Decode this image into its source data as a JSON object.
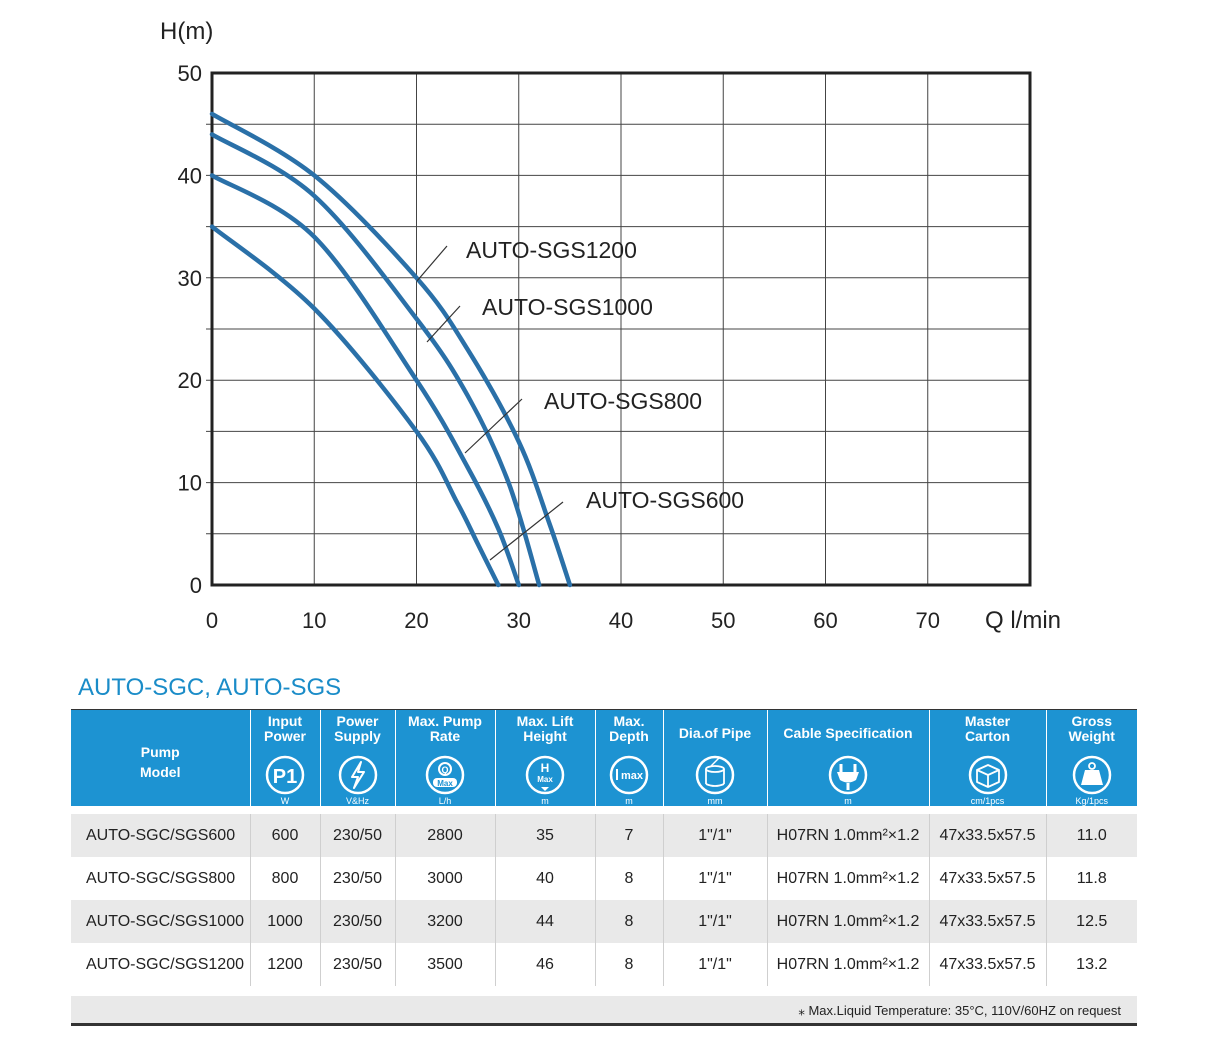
{
  "chart_data": {
    "type": "line",
    "ylabel": "H(m)",
    "xlabel": "Q l/min",
    "xlim": [
      0,
      80
    ],
    "ylim": [
      0,
      50
    ],
    "xticks": [
      "0",
      "10",
      "20",
      "30",
      "40",
      "50",
      "60",
      "70"
    ],
    "yticks": [
      "0",
      "10",
      "20",
      "30",
      "40",
      "50"
    ],
    "grid": true,
    "line_color": "#2a70a8",
    "series": [
      {
        "name": "AUTO-SGS1200",
        "x": [
          0,
          10,
          20,
          25,
          30,
          33,
          35
        ],
        "y": [
          46,
          40,
          30,
          23,
          14,
          6,
          0
        ]
      },
      {
        "name": "AUTO-SGS1000",
        "x": [
          0,
          10,
          20,
          25,
          29,
          32
        ],
        "y": [
          44,
          38,
          26,
          18.5,
          10,
          0
        ]
      },
      {
        "name": "AUTO-SGS800",
        "x": [
          0,
          10,
          20,
          25,
          28,
          30
        ],
        "y": [
          40,
          34,
          20,
          11.5,
          5.5,
          0
        ]
      },
      {
        "name": "AUTO-SGS600",
        "x": [
          0,
          10,
          20,
          24,
          26,
          28
        ],
        "y": [
          35,
          27,
          15,
          8,
          4,
          0
        ]
      }
    ],
    "annotations": [
      {
        "text": "AUTO-SGS1200",
        "series": "AUTO-SGS1200"
      },
      {
        "text": "AUTO-SGS1000",
        "series": "AUTO-SGS1000"
      },
      {
        "text": "AUTO-SGS800",
        "series": "AUTO-SGS800"
      },
      {
        "text": "AUTO-SGS600",
        "series": "AUTO-SGS600"
      }
    ]
  },
  "section_title": "AUTO-SGC, AUTO-SGS",
  "table": {
    "header_color": "#1d93d2",
    "columns": [
      {
        "label": "Pump Model",
        "unit": "",
        "icon": ""
      },
      {
        "label": "Input Power",
        "unit": "W",
        "icon": "p1-icon"
      },
      {
        "label": "Power Supply",
        "unit": "V&Hz",
        "icon": "lightning-icon"
      },
      {
        "label": "Max. Pump Rate",
        "unit": "L/h",
        "icon": "q-max-icon"
      },
      {
        "label": "Max. Lift Height",
        "unit": "m",
        "icon": "h-max-icon"
      },
      {
        "label": "Max. Depth",
        "unit": "m",
        "icon": "depth-max-icon"
      },
      {
        "label": "Dia.of Pipe",
        "unit": "mm",
        "icon": "pipe-diameter-icon"
      },
      {
        "label": "Cable Specification",
        "unit": "m",
        "icon": "plug-icon"
      },
      {
        "label": "Master Carton",
        "unit": "cm/1pcs",
        "icon": "carton-icon"
      },
      {
        "label": "Gross Weight",
        "unit": "Kg/1pcs",
        "icon": "weight-icon"
      }
    ],
    "rows": [
      [
        "AUTO-SGC/SGS600",
        "600",
        "230/50",
        "2800",
        "35",
        "7",
        "1\"/1\"",
        "H07RN 1.0mm²×1.2",
        "47x33.5x57.5",
        "11.0"
      ],
      [
        "AUTO-SGC/SGS800",
        "800",
        "230/50",
        "3000",
        "40",
        "8",
        "1\"/1\"",
        "H07RN 1.0mm²×1.2",
        "47x33.5x57.5",
        "11.8"
      ],
      [
        "AUTO-SGC/SGS1000",
        "1000",
        "230/50",
        "3200",
        "44",
        "8",
        "1\"/1\"",
        "H07RN 1.0mm²×1.2",
        "47x33.5x57.5",
        "12.5"
      ],
      [
        "AUTO-SGC/SGS1200",
        "1200",
        "230/50",
        "3500",
        "46",
        "8",
        "1\"/1\"",
        "H07RN 1.0mm²×1.2",
        "47x33.5x57.5",
        "13.2"
      ]
    ],
    "icon_text": {
      "p1": "P1",
      "q": "Q",
      "max": "Max",
      "h": "H",
      "imax": "max"
    },
    "footnote": "⁎ Max.Liquid Temperature: 35°C, 110V/60HZ on request"
  }
}
